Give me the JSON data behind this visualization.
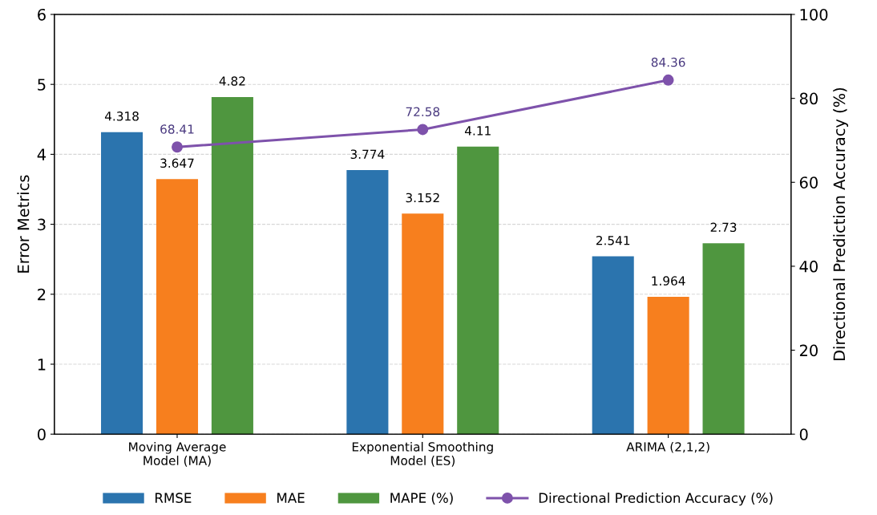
{
  "chart_data": {
    "type": "bar",
    "categories": [
      "Moving Average\nModel (MA)",
      "Exponential Smoothing\nModel (ES)",
      "ARIMA (2,1,2)"
    ],
    "ylabel": "Error Metrics",
    "y2label": "Directional Prediction Accuracy (%)",
    "ylim": [
      0,
      6
    ],
    "yticks": [
      0,
      1,
      2,
      3,
      4,
      5,
      6
    ],
    "y2lim": [
      0,
      100
    ],
    "y2ticks": [
      0,
      20,
      40,
      60,
      80,
      100
    ],
    "grid": "y",
    "legend": "bottom",
    "data_labels": true,
    "marker": "circle",
    "series": [
      {
        "name": "RMSE",
        "color": "#2b74ae",
        "values": [
          4.318,
          3.774,
          2.541
        ]
      },
      {
        "name": "MAE",
        "color": "#f77f1e",
        "values": [
          3.647,
          3.152,
          1.964
        ]
      },
      {
        "name": "MAPE (%)",
        "color": "#4f963f",
        "values": [
          4.82,
          4.11,
          2.73
        ]
      },
      {
        "name": "Directional Prediction Accuracy (%)",
        "type": "line",
        "axis": "y2",
        "color": "#7e52ab",
        "values": [
          68.41,
          72.58,
          84.36
        ]
      }
    ]
  }
}
